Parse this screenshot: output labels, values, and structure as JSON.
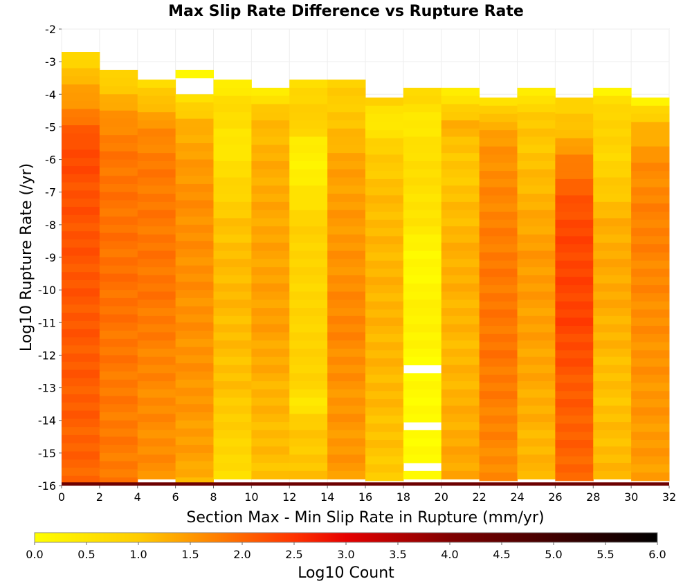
{
  "chart_data": {
    "type": "heatmap",
    "title": "Max Slip Rate Difference vs Rupture Rate",
    "xlabel": "Section Max - Min Slip Rate in Rupture (mm/yr)",
    "ylabel": "Log10 Rupture Rate (/yr)",
    "xlim": [
      0,
      32
    ],
    "ylim": [
      -16,
      -2
    ],
    "x_ticks": [
      "0",
      "2",
      "4",
      "6",
      "8",
      "10",
      "12",
      "14",
      "16",
      "18",
      "20",
      "22",
      "24",
      "26",
      "28",
      "30",
      "32"
    ],
    "y_ticks": [
      "-2",
      "-3",
      "-4",
      "-5",
      "-6",
      "-7",
      "-8",
      "-9",
      "-10",
      "-11",
      "-12",
      "-13",
      "-14",
      "-15",
      "-16"
    ],
    "x_bin_width": 2,
    "y_bin_height": 0.25,
    "colorbar": {
      "label": "Log10 Count",
      "range": [
        0.0,
        6.0
      ],
      "ticks": [
        "0.0",
        "0.5",
        "1.0",
        "1.5",
        "2.0",
        "2.5",
        "3.0",
        "3.5",
        "4.0",
        "4.5",
        "5.0",
        "5.5",
        "6.0"
      ],
      "stops": [
        {
          "value": 0.0,
          "color": "#ffff00"
        },
        {
          "value": 1.0,
          "color": "#ffcc00"
        },
        {
          "value": 1.5,
          "color": "#ff9900"
        },
        {
          "value": 2.0,
          "color": "#ff6600"
        },
        {
          "value": 2.5,
          "color": "#ff3300"
        },
        {
          "value": 3.0,
          "color": "#e60000"
        },
        {
          "value": 3.5,
          "color": "#b30000"
        },
        {
          "value": 4.0,
          "color": "#800000"
        },
        {
          "value": 4.5,
          "color": "#600000"
        },
        {
          "value": 5.0,
          "color": "#400000"
        },
        {
          "value": 5.5,
          "color": "#200000"
        },
        {
          "value": 6.0,
          "color": "#000000"
        }
      ]
    },
    "bottom_row": {
      "y": -16.0,
      "log10_count": 4.3
    },
    "columns": [
      {
        "x": 0,
        "top_log_rate": -2.7,
        "profile": [
          [
            -2.7,
            0.9
          ],
          [
            -3.5,
            1.4
          ],
          [
            -4.5,
            1.9
          ],
          [
            -5.5,
            2.5
          ],
          [
            -7,
            2.4
          ],
          [
            -10,
            2.35
          ],
          [
            -13,
            2.3
          ],
          [
            -16,
            2.2
          ]
        ]
      },
      {
        "x": 2,
        "top_log_rate": -3.25,
        "profile": [
          [
            -3.25,
            0.9
          ],
          [
            -4,
            1.4
          ],
          [
            -5,
            1.9
          ],
          [
            -6,
            2.05
          ],
          [
            -10,
            2.1
          ],
          [
            -13,
            2.0
          ],
          [
            -16,
            2.0
          ]
        ]
      },
      {
        "x": 4,
        "top_log_rate": -3.55,
        "profile": [
          [
            -3.55,
            0.8
          ],
          [
            -4,
            1.2
          ],
          [
            -5,
            1.8
          ],
          [
            -6,
            2.0
          ],
          [
            -10,
            2.05
          ],
          [
            -13,
            1.85
          ],
          [
            -16,
            1.8
          ]
        ]
      },
      {
        "x": 6,
        "top_log_rate": -3.25,
        "gaps": [
          -3.75
        ],
        "profile": [
          [
            -3.25,
            0.3
          ],
          [
            -4,
            0.8
          ],
          [
            -5,
            1.5
          ],
          [
            -7,
            1.8
          ],
          [
            -10,
            1.8
          ],
          [
            -13,
            1.75
          ],
          [
            -15.5,
            1.6
          ],
          [
            -16,
            1.3
          ]
        ]
      },
      {
        "x": 8,
        "top_log_rate": -3.55,
        "profile": [
          [
            -3.55,
            0.4
          ],
          [
            -4.5,
            1.0
          ],
          [
            -5.5,
            0.6
          ],
          [
            -6,
            0.8
          ],
          [
            -8,
            1.3
          ],
          [
            -10,
            1.4
          ],
          [
            -13,
            1.3
          ],
          [
            -15,
            1.0
          ],
          [
            -16,
            0.7
          ]
        ]
      },
      {
        "x": 10,
        "top_log_rate": -3.8,
        "profile": [
          [
            -3.8,
            0.4
          ],
          [
            -4.5,
            1.3
          ],
          [
            -6,
            1.5
          ],
          [
            -9,
            1.6
          ],
          [
            -11,
            1.65
          ],
          [
            -13,
            1.45
          ],
          [
            -16,
            1.3
          ]
        ]
      },
      {
        "x": 12,
        "top_log_rate": -3.55,
        "profile": [
          [
            -3.55,
            0.9
          ],
          [
            -5,
            1.2
          ],
          [
            -5.5,
            0.5
          ],
          [
            -6.5,
            0.5
          ],
          [
            -8,
            1.1
          ],
          [
            -10,
            1.0
          ],
          [
            -13,
            1.1
          ],
          [
            -13.3,
            0.5
          ],
          [
            -14,
            1.2
          ],
          [
            -16,
            1.3
          ]
        ]
      },
      {
        "x": 14,
        "top_log_rate": -3.55,
        "profile": [
          [
            -3.55,
            1.1
          ],
          [
            -5,
            1.3
          ],
          [
            -6,
            1.6
          ],
          [
            -9,
            1.75
          ],
          [
            -11,
            1.9
          ],
          [
            -13,
            1.75
          ],
          [
            -16,
            1.7
          ]
        ]
      },
      {
        "x": 16,
        "top_log_rate": -4.1,
        "profile": [
          [
            -4.1,
            1.2
          ],
          [
            -4.8,
            0.5
          ],
          [
            -5.5,
            1.1
          ],
          [
            -7,
            1.35
          ],
          [
            -10,
            1.45
          ],
          [
            -13,
            1.4
          ],
          [
            -16,
            1.2
          ]
        ]
      },
      {
        "x": 18,
        "top_log_rate": -3.8,
        "gaps": [
          -12.5,
          -14.25,
          -15.5
        ],
        "profile": [
          [
            -3.8,
            1.0
          ],
          [
            -5,
            0.6
          ],
          [
            -6,
            0.9
          ],
          [
            -8,
            0.7
          ],
          [
            -9,
            0.3
          ],
          [
            -11,
            0.5
          ],
          [
            -12,
            0.3
          ],
          [
            -14,
            0.3
          ],
          [
            -16,
            0.3
          ]
        ]
      },
      {
        "x": 20,
        "top_log_rate": -3.8,
        "profile": [
          [
            -3.8,
            0.4
          ],
          [
            -4.3,
            1.0
          ],
          [
            -5,
            1.5
          ],
          [
            -6,
            1.2
          ],
          [
            -9,
            1.5
          ],
          [
            -12,
            1.4
          ],
          [
            -16,
            1.6
          ]
        ]
      },
      {
        "x": 22,
        "top_log_rate": -4.1,
        "profile": [
          [
            -4.1,
            0.7
          ],
          [
            -5,
            1.6
          ],
          [
            -6,
            1.8
          ],
          [
            -9,
            2.0
          ],
          [
            -12,
            2.05
          ],
          [
            -16,
            1.8
          ]
        ]
      },
      {
        "x": 24,
        "top_log_rate": -3.8,
        "profile": [
          [
            -3.8,
            0.3
          ],
          [
            -4.5,
            1.2
          ],
          [
            -6,
            1.3
          ],
          [
            -9,
            1.7
          ],
          [
            -12,
            1.6
          ],
          [
            -15,
            1.4
          ],
          [
            -16,
            1.5
          ]
        ]
      },
      {
        "x": 26,
        "top_log_rate": -4.1,
        "profile": [
          [
            -4.1,
            1.0
          ],
          [
            -5,
            1.3
          ],
          [
            -6,
            1.9
          ],
          [
            -7,
            2.3
          ],
          [
            -8,
            2.5
          ],
          [
            -11,
            2.55
          ],
          [
            -13,
            2.3
          ],
          [
            -16,
            2.2
          ]
        ]
      },
      {
        "x": 28,
        "top_log_rate": -3.8,
        "profile": [
          [
            -3.8,
            0.3
          ],
          [
            -4.5,
            1.1
          ],
          [
            -6,
            1.0
          ],
          [
            -8,
            1.5
          ],
          [
            -10,
            1.55
          ],
          [
            -13,
            1.3
          ],
          [
            -16,
            1.4
          ]
        ]
      },
      {
        "x": 30,
        "top_log_rate": -4.1,
        "profile": [
          [
            -4.1,
            0.3
          ],
          [
            -4.5,
            1.0
          ],
          [
            -5,
            1.4
          ],
          [
            -6,
            1.8
          ],
          [
            -8,
            1.95
          ],
          [
            -11,
            1.8
          ],
          [
            -16,
            1.65
          ]
        ]
      }
    ]
  }
}
